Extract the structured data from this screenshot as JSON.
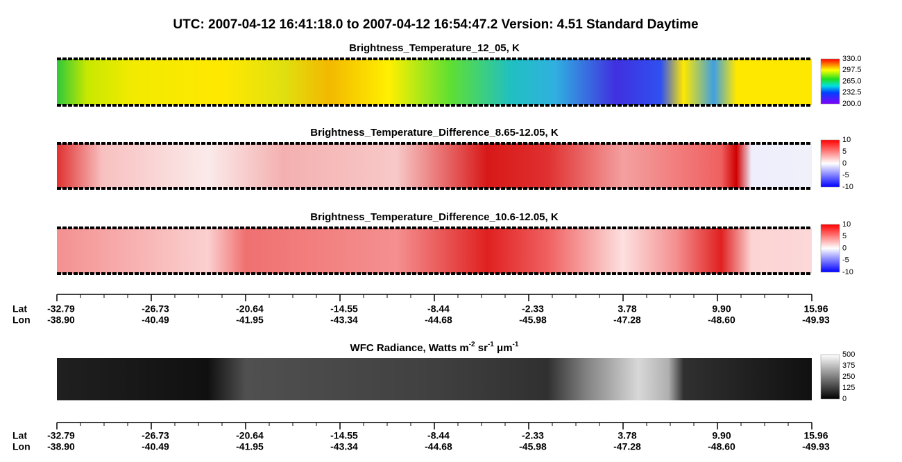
{
  "title": "UTC:  2007-04-12   16:41:18.0  to  2007-04-12   16:54:47.2    Version: 4.51  Standard Daytime",
  "panels": [
    {
      "title": "Brightness_Temperature_12_05, K",
      "colorbar": [
        "330.0",
        "297.5",
        "265.0",
        "232.5",
        "200.0"
      ]
    },
    {
      "title": "Brightness_Temperature_Difference_8.65-12.05, K",
      "colorbar": [
        "10",
        "5",
        "0",
        "-5",
        "-10"
      ]
    },
    {
      "title": "Brightness_Temperature_Difference_10.6-12.05, K",
      "colorbar": [
        "10",
        "5",
        "0",
        "-5",
        "-10"
      ]
    },
    {
      "title": [
        "WFC Radiance, Watts m",
        "-2",
        " sr",
        "-1",
        " μm",
        "-1"
      ],
      "colorbar": [
        "500",
        "375",
        "250",
        "125",
        "0"
      ]
    }
  ],
  "axis": {
    "lat_label": "Lat",
    "lon_label": "Lon",
    "lat": [
      "-32.79",
      "-26.73",
      "-20.64",
      "-14.55",
      "-8.44",
      "-2.33",
      "3.78",
      "9.90",
      "15.96"
    ],
    "lon": [
      "-38.90",
      "-40.49",
      "-41.95",
      "-43.34",
      "-44.68",
      "-45.98",
      "-47.28",
      "-48.60",
      "-49.93"
    ]
  }
}
